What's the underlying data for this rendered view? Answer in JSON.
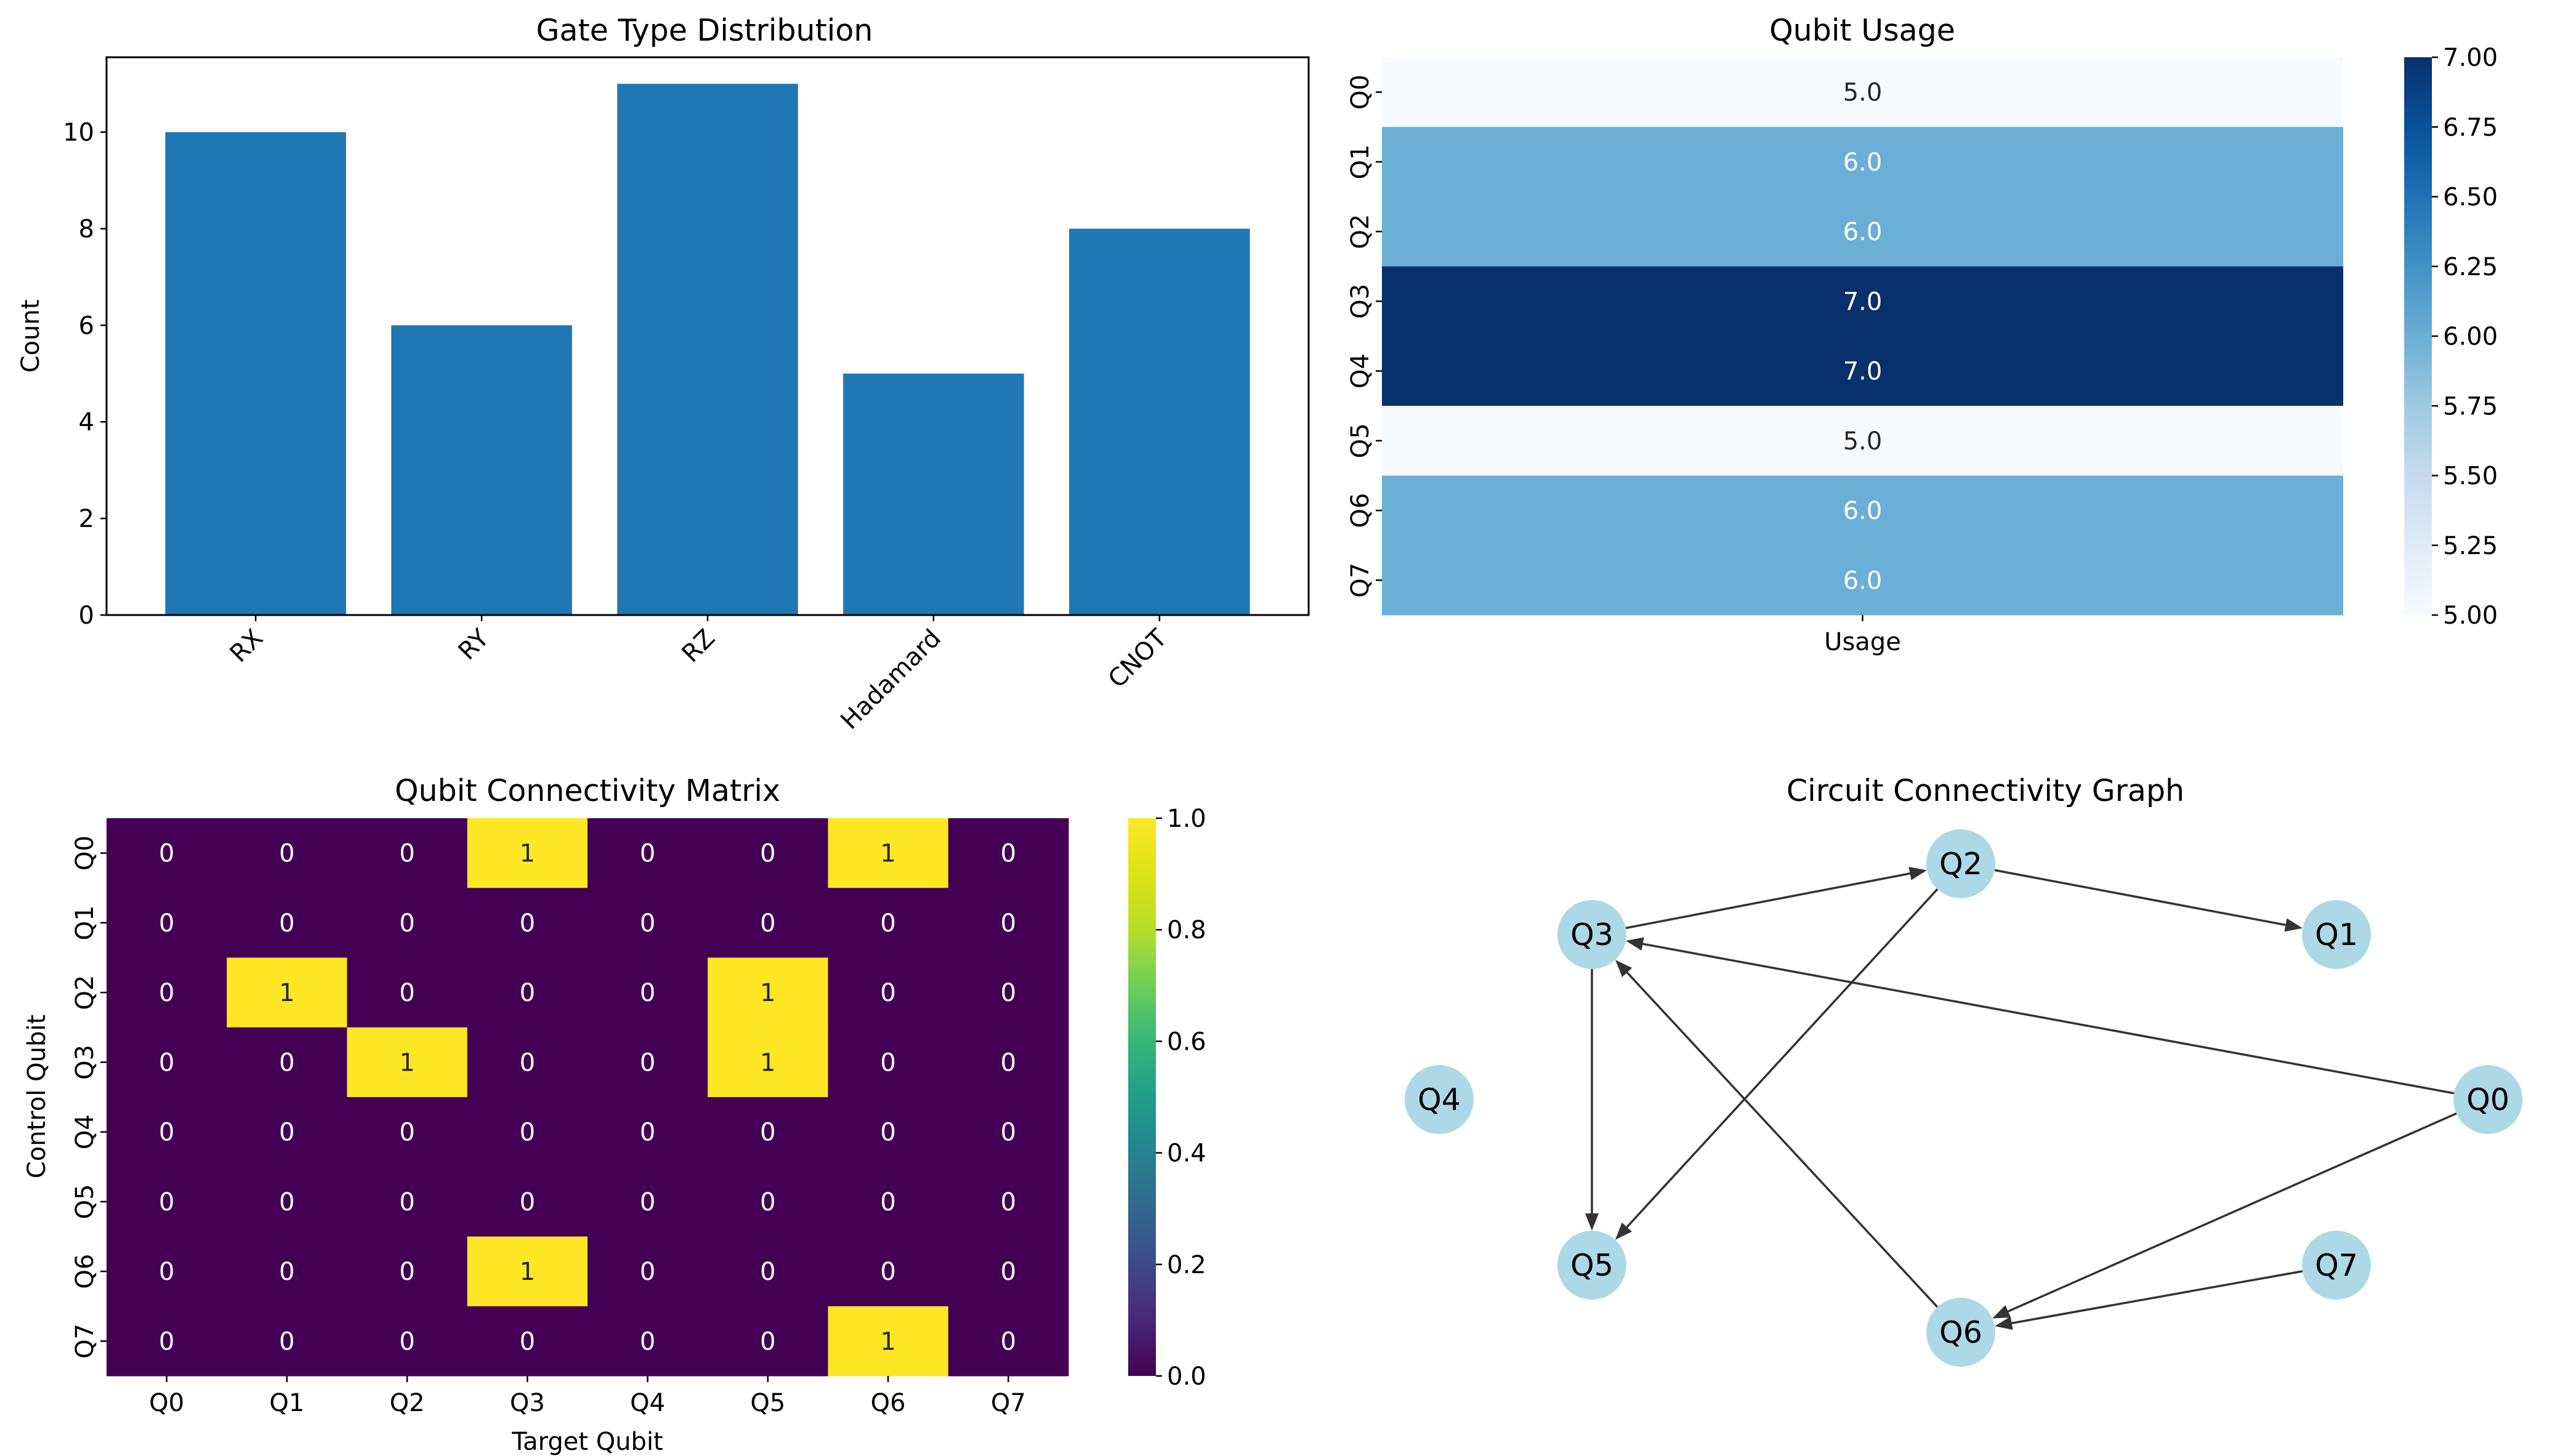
{
  "colors": {
    "bar": "#1f77b4",
    "node_fill": "#add8e6",
    "edge": "#333333",
    "blues_low": "#f7fbff",
    "blues_high": "#08306b",
    "viridis_low": "#440154",
    "viridis_high": "#fde725"
  },
  "chart_data": [
    {
      "type": "bar",
      "title": "Gate Type Distribution",
      "xlabel": "",
      "ylabel": "Count",
      "categories": [
        "RX",
        "RY",
        "RZ",
        "Hadamard",
        "CNOT"
      ],
      "values": [
        10,
        6,
        11,
        5,
        8
      ],
      "ylim": [
        0,
        11.55
      ],
      "yticks": [
        0,
        2,
        4,
        6,
        8,
        10
      ],
      "grid": false,
      "xtick_rotation_deg": 45
    },
    {
      "type": "heatmap",
      "title": "Qubit Usage",
      "xlabel": "",
      "ylabel": "",
      "rows": [
        "Q0",
        "Q1",
        "Q2",
        "Q3",
        "Q4",
        "Q5",
        "Q6",
        "Q7"
      ],
      "columns": [
        "Usage"
      ],
      "values": [
        5.0,
        6.0,
        6.0,
        7.0,
        7.0,
        5.0,
        6.0,
        6.0
      ],
      "cell_labels": [
        "5.0",
        "6.0",
        "6.0",
        "7.0",
        "7.0",
        "5.0",
        "6.0",
        "6.0"
      ],
      "colormap": "Blues",
      "colorbar": {
        "range": [
          5.0,
          7.0
        ],
        "ticks": [
          5.0,
          5.25,
          5.5,
          5.75,
          6.0,
          6.25,
          6.5,
          6.75,
          7.0
        ],
        "tick_labels": [
          "5.00",
          "5.25",
          "5.50",
          "5.75",
          "6.00",
          "6.25",
          "6.50",
          "6.75",
          "7.00"
        ]
      }
    },
    {
      "type": "heatmap",
      "title": "Qubit Connectivity Matrix",
      "xlabel": "Target Qubit",
      "ylabel": "Control Qubit",
      "rows": [
        "Q0",
        "Q1",
        "Q2",
        "Q3",
        "Q4",
        "Q5",
        "Q6",
        "Q7"
      ],
      "columns": [
        "Q0",
        "Q1",
        "Q2",
        "Q3",
        "Q4",
        "Q5",
        "Q6",
        "Q7"
      ],
      "matrix": [
        [
          0,
          0,
          0,
          1,
          0,
          0,
          1,
          0
        ],
        [
          0,
          0,
          0,
          0,
          0,
          0,
          0,
          0
        ],
        [
          0,
          1,
          0,
          0,
          0,
          1,
          0,
          0
        ],
        [
          0,
          0,
          1,
          0,
          0,
          1,
          0,
          0
        ],
        [
          0,
          0,
          0,
          0,
          0,
          0,
          0,
          0
        ],
        [
          0,
          0,
          0,
          0,
          0,
          0,
          0,
          0
        ],
        [
          0,
          0,
          0,
          1,
          0,
          0,
          0,
          0
        ],
        [
          0,
          0,
          0,
          0,
          0,
          0,
          1,
          0
        ]
      ],
      "colormap": "viridis",
      "colorbar": {
        "range": [
          0.0,
          1.0
        ],
        "ticks": [
          0.0,
          0.2,
          0.4,
          0.6,
          0.8,
          1.0
        ],
        "tick_labels": [
          "0.0",
          "0.2",
          "0.4",
          "0.6",
          "0.8",
          "1.0"
        ]
      }
    },
    {
      "type": "network",
      "title": "Circuit Connectivity Graph",
      "nodes": [
        "Q0",
        "Q1",
        "Q2",
        "Q3",
        "Q4",
        "Q5",
        "Q6",
        "Q7"
      ],
      "edges": [
        [
          "Q0",
          "Q3"
        ],
        [
          "Q0",
          "Q6"
        ],
        [
          "Q2",
          "Q1"
        ],
        [
          "Q2",
          "Q5"
        ],
        [
          "Q3",
          "Q2"
        ],
        [
          "Q3",
          "Q5"
        ],
        [
          "Q6",
          "Q3"
        ],
        [
          "Q7",
          "Q6"
        ]
      ],
      "directed": true
    }
  ]
}
